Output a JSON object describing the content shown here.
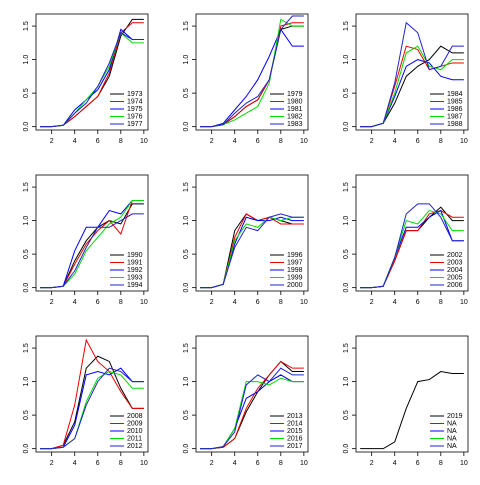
{
  "chart_data": [
    {
      "type": "line",
      "x": [
        1,
        2,
        3,
        4,
        5,
        6,
        7,
        8,
        9,
        10
      ],
      "xlim": [
        0.64,
        10.36
      ],
      "xticks": [
        2,
        4,
        6,
        8,
        10
      ],
      "ylim": [
        -0.05,
        1.68
      ],
      "yticks": [
        {
          "value": 0,
          "label": "0.0"
        },
        0.5,
        {
          "value": 1,
          "label": "1.0"
        },
        1.5
      ],
      "legend": "bottomright",
      "series": [
        {
          "name": "1973",
          "color": "#000000",
          "values": [
            0,
            0,
            0.02,
            0.15,
            0.3,
            0.45,
            0.75,
            1.35,
            1.6,
            1.6
          ]
        },
        {
          "name": "1974",
          "color": "#ee0000",
          "values": [
            0,
            0,
            0.02,
            0.15,
            0.3,
            0.45,
            0.8,
            1.4,
            1.55,
            1.55
          ]
        },
        {
          "name": "1975",
          "color": "#0000ff",
          "values": [
            0,
            0,
            0.02,
            0.25,
            0.4,
            0.55,
            0.85,
            1.45,
            1.3,
            1.3
          ]
        },
        {
          "name": "1976",
          "color": "#00dd00",
          "values": [
            0,
            0,
            0.02,
            0.2,
            0.4,
            0.6,
            0.9,
            1.4,
            1.25,
            1.25
          ]
        },
        {
          "name": "1977",
          "color": "#2222cc",
          "values": [
            0,
            0,
            0.02,
            0.2,
            0.35,
            0.6,
            0.95,
            1.4,
            1.3,
            1.3
          ]
        }
      ]
    },
    {
      "type": "line",
      "x": [
        1,
        2,
        3,
        4,
        5,
        6,
        7,
        8,
        9,
        10
      ],
      "xlim": [
        0.64,
        10.36
      ],
      "xticks": [
        2,
        4,
        6,
        8,
        10
      ],
      "ylim": [
        -0.05,
        1.68
      ],
      "yticks": [
        {
          "value": 0,
          "label": "0.0"
        },
        0.5,
        {
          "value": 1,
          "label": "1.0"
        },
        1.5
      ],
      "legend": "bottomright",
      "series": [
        {
          "name": "1979",
          "color": "#000000",
          "values": [
            0,
            0,
            0.03,
            0.15,
            0.3,
            0.4,
            0.7,
            1.45,
            1.5,
            1.5
          ]
        },
        {
          "name": "1980",
          "color": "#ee0000",
          "values": [
            0,
            0,
            0.03,
            0.15,
            0.3,
            0.4,
            0.7,
            1.5,
            1.55,
            1.55
          ]
        },
        {
          "name": "1981",
          "color": "#0000ff",
          "values": [
            0,
            0,
            0.05,
            0.25,
            0.45,
            0.7,
            1.05,
            1.45,
            1.2,
            1.2
          ]
        },
        {
          "name": "1982",
          "color": "#00dd00",
          "values": [
            0,
            0,
            0.03,
            0.1,
            0.2,
            0.3,
            0.65,
            1.6,
            1.5,
            1.5
          ]
        },
        {
          "name": "1983",
          "color": "#2222cc",
          "values": [
            0,
            0,
            0.03,
            0.2,
            0.35,
            0.45,
            0.7,
            1.45,
            1.65,
            1.65
          ]
        }
      ]
    },
    {
      "type": "line",
      "x": [
        1,
        2,
        3,
        4,
        5,
        6,
        7,
        8,
        9,
        10
      ],
      "xlim": [
        0.64,
        10.36
      ],
      "xticks": [
        2,
        4,
        6,
        8,
        10
      ],
      "ylim": [
        -0.05,
        1.68
      ],
      "yticks": [
        {
          "value": 0,
          "label": "0.0"
        },
        0.5,
        {
          "value": 1,
          "label": "1.0"
        },
        1.5
      ],
      "legend": "bottomright",
      "series": [
        {
          "name": "1984",
          "color": "#000000",
          "values": [
            0,
            0,
            0.05,
            0.35,
            0.75,
            0.9,
            1.0,
            1.2,
            1.1,
            1.1
          ]
        },
        {
          "name": "1985",
          "color": "#ee0000",
          "values": [
            0,
            0,
            0.05,
            0.6,
            1.2,
            1.15,
            0.85,
            0.9,
            0.95,
            0.95
          ]
        },
        {
          "name": "1986",
          "color": "#0000ff",
          "values": [
            0,
            0,
            0.05,
            0.45,
            0.9,
            1.0,
            0.95,
            0.75,
            0.7,
            0.7
          ]
        },
        {
          "name": "1987",
          "color": "#00dd00",
          "values": [
            0,
            0,
            0.05,
            0.5,
            1.1,
            1.2,
            0.9,
            0.85,
            1.0,
            1.0
          ]
        },
        {
          "name": "1988",
          "color": "#2222cc",
          "values": [
            0,
            0,
            0.05,
            0.65,
            1.55,
            1.4,
            0.85,
            0.9,
            1.2,
            1.2
          ]
        }
      ]
    },
    {
      "type": "line",
      "x": [
        1,
        2,
        3,
        4,
        5,
        6,
        7,
        8,
        9,
        10
      ],
      "xlim": [
        0.64,
        10.36
      ],
      "xticks": [
        2,
        4,
        6,
        8,
        10
      ],
      "ylim": [
        -0.05,
        1.68
      ],
      "yticks": [
        {
          "value": 0,
          "label": "0.0"
        },
        0.5,
        {
          "value": 1,
          "label": "1.0"
        },
        1.5
      ],
      "legend": "bottomright",
      "series": [
        {
          "name": "1990",
          "color": "#000000",
          "values": [
            0,
            0,
            0.02,
            0.4,
            0.7,
            0.9,
            1.0,
            0.95,
            1.25,
            1.25
          ]
        },
        {
          "name": "1991",
          "color": "#ee0000",
          "values": [
            0,
            0,
            0.02,
            0.35,
            0.65,
            0.85,
            1.0,
            0.8,
            1.3,
            1.3
          ]
        },
        {
          "name": "1992",
          "color": "#0000ff",
          "values": [
            0,
            0,
            0.02,
            0.55,
            0.9,
            0.9,
            1.15,
            1.1,
            1.3,
            1.3
          ]
        },
        {
          "name": "1993",
          "color": "#00dd00",
          "values": [
            0,
            0,
            0.02,
            0.2,
            0.55,
            0.75,
            0.95,
            1.05,
            1.3,
            1.3
          ]
        },
        {
          "name": "1994",
          "color": "#2222cc",
          "values": [
            0,
            0,
            0.02,
            0.25,
            0.6,
            0.9,
            0.9,
            1.0,
            1.1,
            1.1
          ]
        }
      ]
    },
    {
      "type": "line",
      "x": [
        1,
        2,
        3,
        4,
        5,
        6,
        7,
        8,
        9,
        10
      ],
      "xlim": [
        0.64,
        10.36
      ],
      "xticks": [
        2,
        4,
        6,
        8,
        10
      ],
      "ylim": [
        -0.05,
        1.68
      ],
      "yticks": [
        {
          "value": 0,
          "label": "0.0"
        },
        0.5,
        {
          "value": 1,
          "label": "1.0"
        },
        1.5
      ],
      "legend": "bottomright",
      "series": [
        {
          "name": "1996",
          "color": "#000000",
          "values": [
            0,
            0,
            0.05,
            0.85,
            1.1,
            1.0,
            1.05,
            1.0,
            0.95,
            0.95
          ]
        },
        {
          "name": "1997",
          "color": "#ee0000",
          "values": [
            0,
            0,
            0.05,
            0.75,
            1.1,
            1.0,
            1.05,
            0.95,
            0.95,
            0.95
          ]
        },
        {
          "name": "1998",
          "color": "#0000ff",
          "values": [
            0,
            0,
            0.05,
            0.65,
            1.05,
            1.0,
            1.0,
            1.05,
            1.0,
            1.0
          ]
        },
        {
          "name": "1999",
          "color": "#00dd00",
          "values": [
            0,
            0,
            0.05,
            0.7,
            0.95,
            0.9,
            1.05,
            1.0,
            1.05,
            1.05
          ]
        },
        {
          "name": "2000",
          "color": "#2222cc",
          "values": [
            0,
            0,
            0.05,
            0.6,
            0.9,
            0.85,
            1.05,
            1.1,
            1.05,
            1.05
          ]
        }
      ]
    },
    {
      "type": "line",
      "x": [
        1,
        2,
        3,
        4,
        5,
        6,
        7,
        8,
        9,
        10
      ],
      "xlim": [
        0.64,
        10.36
      ],
      "xticks": [
        2,
        4,
        6,
        8,
        10
      ],
      "ylim": [
        -0.05,
        1.68
      ],
      "yticks": [
        {
          "value": 0,
          "label": "0.0"
        },
        0.5,
        {
          "value": 1,
          "label": "1.0"
        },
        1.5
      ],
      "legend": "bottomright",
      "series": [
        {
          "name": "2002",
          "color": "#000000",
          "values": [
            0,
            0,
            0.02,
            0.4,
            0.85,
            0.85,
            1.05,
            1.2,
            1.0,
            1.0
          ]
        },
        {
          "name": "2003",
          "color": "#ee0000",
          "values": [
            0,
            0,
            0.02,
            0.4,
            0.85,
            0.85,
            1.1,
            1.15,
            1.05,
            1.05
          ]
        },
        {
          "name": "2004",
          "color": "#0000ff",
          "values": [
            0,
            0,
            0.02,
            0.45,
            0.9,
            0.9,
            1.05,
            1.15,
            0.7,
            0.7
          ]
        },
        {
          "name": "2005",
          "color": "#00dd00",
          "values": [
            0,
            0,
            0.02,
            0.45,
            1.0,
            0.95,
            1.15,
            1.1,
            0.85,
            0.85
          ]
        },
        {
          "name": "2006",
          "color": "#2222cc",
          "values": [
            0,
            0,
            0.02,
            0.45,
            1.1,
            1.25,
            1.25,
            1.05,
            0.7,
            0.7
          ]
        }
      ]
    },
    {
      "type": "line",
      "x": [
        1,
        2,
        3,
        4,
        5,
        6,
        7,
        8,
        9,
        10
      ],
      "xlim": [
        0.64,
        10.36
      ],
      "xticks": [
        2,
        4,
        6,
        8,
        10
      ],
      "ylim": [
        -0.05,
        1.68
      ],
      "yticks": [
        {
          "value": 0,
          "label": "0.0"
        },
        0.5,
        {
          "value": 1,
          "label": "1.0"
        },
        1.5
      ],
      "legend": "bottomright",
      "series": [
        {
          "name": "2008",
          "color": "#000000",
          "values": [
            0,
            0,
            0.05,
            0.4,
            1.2,
            1.38,
            1.3,
            0.9,
            0.6,
            0.6
          ]
        },
        {
          "name": "2009",
          "color": "#ee0000",
          "values": [
            0,
            0,
            0.05,
            0.65,
            1.62,
            1.3,
            1.15,
            0.85,
            0.6,
            0.6
          ]
        },
        {
          "name": "2010",
          "color": "#0000ff",
          "values": [
            0,
            0,
            0.02,
            0.35,
            1.1,
            1.15,
            1.1,
            1.2,
            1.0,
            1.0
          ]
        },
        {
          "name": "2011",
          "color": "#00dd00",
          "values": [
            0,
            0,
            0.02,
            0.15,
            0.7,
            1.05,
            1.15,
            1.1,
            0.9,
            0.9
          ]
        },
        {
          "name": "2012",
          "color": "#2222cc",
          "values": [
            0,
            0,
            0.02,
            0.15,
            0.65,
            1.0,
            1.2,
            1.15,
            1.0,
            1.0
          ]
        }
      ]
    },
    {
      "type": "line",
      "x": [
        1,
        2,
        3,
        4,
        5,
        6,
        7,
        8,
        9,
        10
      ],
      "xlim": [
        0.64,
        10.36
      ],
      "xticks": [
        2,
        4,
        6,
        8,
        10
      ],
      "ylim": [
        -0.05,
        1.68
      ],
      "yticks": [
        {
          "value": 0,
          "label": "0.0"
        },
        0.5,
        {
          "value": 1,
          "label": "1.0"
        },
        1.5
      ],
      "legend": "bottomright",
      "series": [
        {
          "name": "2013",
          "color": "#000000",
          "values": [
            0,
            0,
            0.02,
            0.15,
            0.55,
            0.85,
            1.1,
            1.3,
            1.15,
            1.15
          ]
        },
        {
          "name": "2014",
          "color": "#ee0000",
          "values": [
            0,
            0,
            0.02,
            0.15,
            0.6,
            0.9,
            1.1,
            1.3,
            1.2,
            1.2
          ]
        },
        {
          "name": "2015",
          "color": "#0000ff",
          "values": [
            0,
            0,
            0.03,
            0.3,
            0.75,
            0.85,
            1.0,
            1.1,
            1.0,
            1.0
          ]
        },
        {
          "name": "2016",
          "color": "#00dd00",
          "values": [
            0,
            0,
            0.03,
            0.3,
            1.0,
            1.0,
            0.95,
            1.05,
            1.0,
            1.0
          ]
        },
        {
          "name": "2017",
          "color": "#2222cc",
          "values": [
            0,
            0,
            0.03,
            0.25,
            0.95,
            1.1,
            1.0,
            1.2,
            1.1,
            1.1
          ]
        }
      ]
    },
    {
      "type": "line",
      "x": [
        1,
        2,
        3,
        4,
        5,
        6,
        7,
        8,
        9,
        10
      ],
      "xlim": [
        0.64,
        10.36
      ],
      "xticks": [
        2,
        4,
        6,
        8,
        10
      ],
      "ylim": [
        -0.05,
        1.68
      ],
      "yticks": [
        {
          "value": 0,
          "label": "0.0"
        },
        0.5,
        {
          "value": 1,
          "label": "1.0"
        },
        1.5
      ],
      "legend": "bottomright",
      "series": [
        {
          "name": "2019",
          "color": "#000000",
          "values": [
            0,
            0,
            0,
            0.1,
            0.6,
            1.0,
            1.03,
            1.15,
            1.12,
            1.12
          ]
        },
        {
          "name": "NA",
          "color": "#ee0000",
          "values": [
            null,
            null,
            null,
            null,
            null,
            null,
            null,
            null,
            null,
            null
          ]
        },
        {
          "name": "NA",
          "color": "#0000ff",
          "values": [
            null,
            null,
            null,
            null,
            null,
            null,
            null,
            null,
            null,
            null
          ]
        },
        {
          "name": "NA",
          "color": "#00dd00",
          "values": [
            null,
            null,
            null,
            null,
            null,
            null,
            null,
            null,
            null,
            null
          ]
        },
        {
          "name": "NA",
          "color": "#2222cc",
          "values": [
            null,
            null,
            null,
            null,
            null,
            null,
            null,
            null,
            null,
            null
          ]
        }
      ]
    }
  ]
}
